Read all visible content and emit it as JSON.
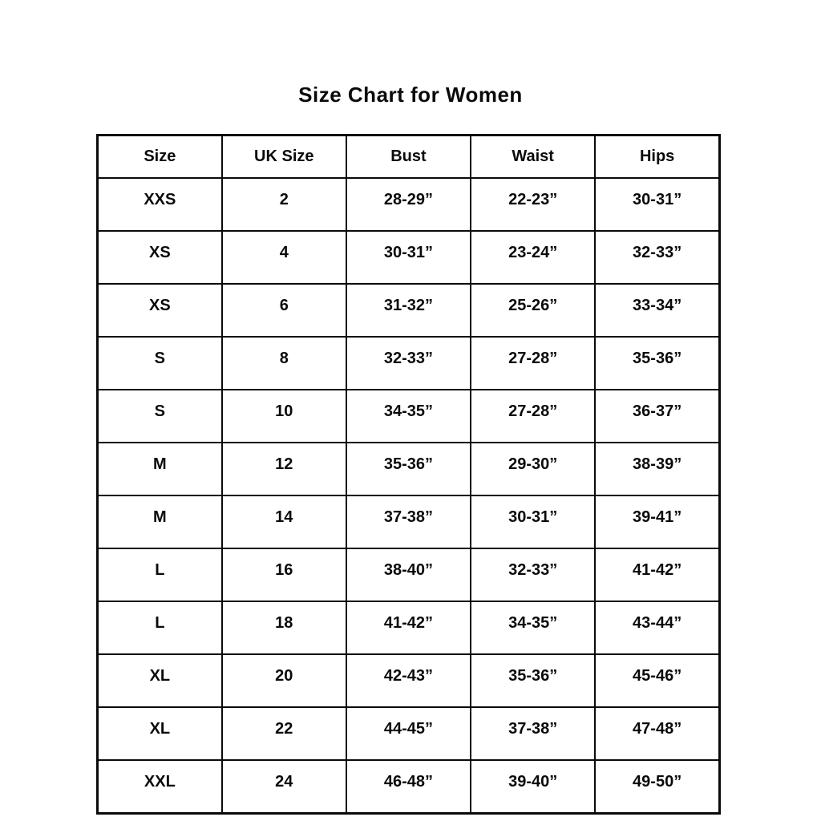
{
  "title": "Size Chart for Women",
  "chart_data": {
    "type": "table",
    "title": "Size Chart for Women",
    "columns": [
      "Size",
      "UK Size",
      "Bust",
      "Waist",
      "Hips"
    ],
    "rows": [
      [
        "XXS",
        "2",
        "28-29”",
        "22-23”",
        "30-31”"
      ],
      [
        "XS",
        "4",
        "30-31”",
        "23-24”",
        "32-33”"
      ],
      [
        "XS",
        "6",
        "31-32”",
        "25-26”",
        "33-34”"
      ],
      [
        "S",
        "8",
        "32-33”",
        "27-28”",
        "35-36”"
      ],
      [
        "S",
        "10",
        "34-35”",
        "27-28”",
        "36-37”"
      ],
      [
        "M",
        "12",
        "35-36”",
        "29-30”",
        "38-39”"
      ],
      [
        "M",
        "14",
        "37-38”",
        "30-31”",
        "39-41”"
      ],
      [
        "L",
        "16",
        "38-40”",
        "32-33”",
        "41-42”"
      ],
      [
        "L",
        "18",
        "41-42”",
        "34-35”",
        "43-44”"
      ],
      [
        "XL",
        "20",
        "42-43”",
        "35-36”",
        "45-46”"
      ],
      [
        "XL",
        "22",
        "44-45”",
        "37-38”",
        "47-48”"
      ],
      [
        "XXL",
        "24",
        "46-48”",
        "39-40”",
        "49-50”"
      ]
    ],
    "layout": {
      "grid": "on",
      "text_color": "#0a0a0a",
      "background_color": "#ffffff",
      "border_color": "#0a0a0a"
    }
  }
}
